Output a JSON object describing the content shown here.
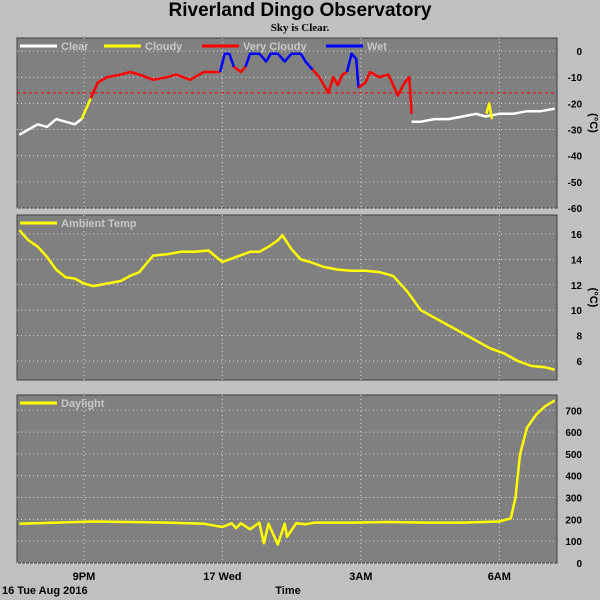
{
  "page": {
    "title": "Riverland Dingo Observatory",
    "subtitle": "Sky is Clear."
  },
  "colors": {
    "background": "#c0c0c0",
    "plot_background": "#808080",
    "grid": "#d8d8d8",
    "clear": "#ffffff",
    "cloudy": "#ffff00",
    "very_cloudy": "#ff0000",
    "wet": "#0000ff",
    "threshold_line": "#ff0000",
    "label_text": "#c8c8c8"
  },
  "x_axis": {
    "date_label": "16 Tue Aug 2016",
    "title": "Time",
    "tick_labels": [
      "9PM",
      "17 Wed",
      "3AM",
      "6AM"
    ],
    "tick_hours": [
      21,
      24,
      27,
      30
    ],
    "range_hours": [
      19.55,
      31.25
    ]
  },
  "chart_data": [
    {
      "type": "line",
      "ylabel": "(°C)",
      "ylim": [
        -60,
        5
      ],
      "yticks": [
        0,
        -10,
        -20,
        -30,
        -40,
        -50,
        -60
      ],
      "grid": true,
      "threshold": -16,
      "legend_position": "top-left",
      "legend": [
        {
          "name": "Clear",
          "color": "#ffffff"
        },
        {
          "name": "Cloudy",
          "color": "#ffff00"
        },
        {
          "name": "Very Cloudy",
          "color": "#ff0000"
        },
        {
          "name": "Wet",
          "color": "#0000ff"
        }
      ],
      "series": [
        {
          "name": "Clear",
          "color": "#ffffff",
          "x": [
            19.6,
            19.8,
            20.0,
            20.2,
            20.4,
            20.6,
            20.8,
            20.95
          ],
          "y": [
            -32,
            -30,
            -28,
            -29,
            -26,
            -27,
            -28,
            -26
          ]
        },
        {
          "name": "Cloudy",
          "color": "#ffff00",
          "x": [
            20.95,
            21.05,
            21.15
          ],
          "y": [
            -26,
            -22,
            -18
          ]
        },
        {
          "name": "Very Cloudy",
          "color": "#ff0000",
          "x": [
            21.15,
            21.3,
            21.5,
            21.8,
            22.0,
            22.2,
            22.5,
            22.8,
            23.0,
            23.3,
            23.6,
            23.95
          ],
          "y": [
            -18,
            -12,
            -10,
            -9,
            -8,
            -9,
            -11,
            -10,
            -9,
            -11,
            -8,
            -8
          ]
        },
        {
          "name": "Wet",
          "color": "#0000ff",
          "x": [
            23.95,
            24.05,
            24.15,
            24.25
          ],
          "y": [
            -8,
            -1,
            -1,
            -6
          ]
        },
        {
          "name": "Very Cloudy",
          "color": "#ff0000",
          "x": [
            24.25,
            24.4,
            24.5
          ],
          "y": [
            -6,
            -8,
            -6
          ]
        },
        {
          "name": "Wet",
          "color": "#0000ff",
          "x": [
            24.5,
            24.6,
            24.8,
            24.95,
            25.05,
            25.2,
            25.35,
            25.5,
            25.7,
            25.8,
            25.95
          ],
          "y": [
            -6,
            -1,
            -1,
            -4,
            -1,
            -1,
            -4,
            -1,
            -1,
            -4,
            -7
          ]
        },
        {
          "name": "Very Cloudy",
          "color": "#ff0000",
          "x": [
            25.95,
            26.1,
            26.2,
            26.3,
            26.4,
            26.5,
            26.6,
            26.7
          ],
          "y": [
            -7,
            -10,
            -13,
            -16,
            -10,
            -13,
            -9,
            -8
          ]
        },
        {
          "name": "Wet",
          "color": "#0000ff",
          "x": [
            26.7,
            26.8,
            26.9,
            26.95
          ],
          "y": [
            -8,
            -1,
            -3,
            -14
          ]
        },
        {
          "name": "Very Cloudy",
          "color": "#ff0000",
          "x": [
            26.95,
            27.1,
            27.2,
            27.4,
            27.6,
            27.8,
            27.95,
            28.05,
            28.1
          ],
          "y": [
            -14,
            -12,
            -8,
            -10,
            -9,
            -17,
            -12,
            -10,
            -24
          ]
        },
        {
          "name": "Clear",
          "color": "#ffffff",
          "x": [
            28.1,
            28.3,
            28.6,
            28.9,
            29.2,
            29.5,
            29.7,
            30.0,
            30.3,
            30.6,
            30.9,
            31.2
          ],
          "y": [
            -27,
            -27,
            -26,
            -26,
            -25,
            -24,
            -25,
            -24,
            -24,
            -23,
            -23,
            -22
          ]
        },
        {
          "name": "Cloudy",
          "color": "#ffff00",
          "x": [
            29.72,
            29.78,
            29.84
          ],
          "y": [
            -24,
            -20,
            -26
          ]
        }
      ]
    },
    {
      "type": "line",
      "ylabel": "(°C)",
      "ylim": [
        4.5,
        17.5
      ],
      "yticks": [
        16,
        14,
        12,
        10,
        8,
        6
      ],
      "grid": true,
      "legend_position": "top-left",
      "legend": [
        {
          "name": "Ambient Temp",
          "color": "#ffff00"
        }
      ],
      "series": [
        {
          "name": "Ambient Temp",
          "color": "#ffff00",
          "x": [
            19.6,
            19.8,
            20.0,
            20.2,
            20.4,
            20.6,
            20.8,
            21.0,
            21.2,
            21.5,
            21.8,
            22.0,
            22.2,
            22.5,
            22.8,
            23.1,
            23.4,
            23.7,
            24.0,
            24.3,
            24.6,
            24.8,
            25.0,
            25.2,
            25.3,
            25.5,
            25.7,
            25.9,
            26.2,
            26.5,
            26.8,
            27.1,
            27.4,
            27.7,
            28.0,
            28.3,
            28.6,
            28.9,
            29.2,
            29.5,
            29.8,
            30.1,
            30.4,
            30.7,
            31.0,
            31.2
          ],
          "y": [
            16.3,
            15.5,
            15.0,
            14.2,
            13.2,
            12.6,
            12.5,
            12.1,
            11.9,
            12.1,
            12.3,
            12.7,
            13.0,
            14.3,
            14.4,
            14.6,
            14.6,
            14.7,
            13.8,
            14.2,
            14.6,
            14.6,
            15.0,
            15.5,
            15.9,
            14.8,
            14.0,
            13.8,
            13.4,
            13.2,
            13.1,
            13.1,
            13.0,
            12.7,
            11.5,
            10.0,
            9.4,
            8.8,
            8.2,
            7.6,
            7.0,
            6.6,
            6.0,
            5.6,
            5.5,
            5.3
          ]
        }
      ]
    },
    {
      "type": "line",
      "ylim": [
        0,
        770
      ],
      "yticks": [
        700,
        600,
        500,
        400,
        300,
        200,
        100,
        0
      ],
      "grid": true,
      "legend_position": "top-left",
      "legend": [
        {
          "name": "Daylight",
          "color": "#ffff00"
        }
      ],
      "series": [
        {
          "name": "Daylight",
          "color": "#ffff00",
          "x": [
            19.6,
            20.4,
            21.2,
            22.0,
            22.8,
            23.6,
            24.0,
            24.2,
            24.3,
            24.4,
            24.6,
            24.8,
            24.9,
            25.0,
            25.2,
            25.35,
            25.4,
            25.6,
            25.8,
            26.0,
            26.8,
            27.6,
            28.4,
            29.2,
            30.0,
            30.25,
            30.35,
            30.45,
            30.6,
            30.8,
            31.0,
            31.2
          ],
          "y": [
            180,
            185,
            190,
            188,
            185,
            180,
            165,
            182,
            160,
            182,
            155,
            185,
            90,
            180,
            85,
            180,
            120,
            182,
            178,
            185,
            185,
            188,
            185,
            185,
            190,
            205,
            300,
            500,
            620,
            680,
            720,
            745
          ]
        }
      ]
    }
  ]
}
